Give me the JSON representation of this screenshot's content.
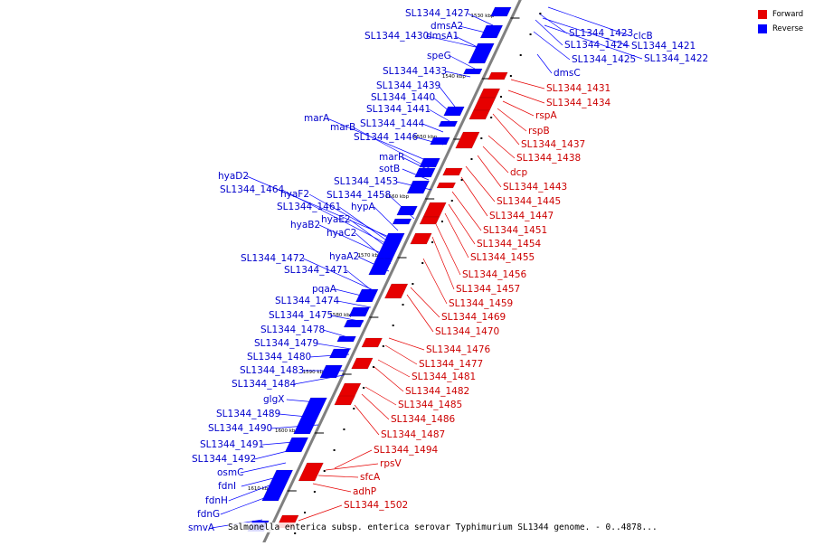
{
  "colors": {
    "forward": "#e60000",
    "reverse": "#0000ff",
    "forward_label": "#cc0000",
    "reverse_label": "#0000cc",
    "backbone": "#808080"
  },
  "legend": [
    {
      "label": "Forward",
      "color": "#e60000"
    },
    {
      "label": "Reverse",
      "color": "#0000ff"
    }
  ],
  "caption": "Salmonella enterica subsp. enterica serovar Typhimurium SL1344 genome. - 0..4878...",
  "ticks": [
    "1530 kbp",
    "1540 kbp",
    "1550 kbp",
    "1560 kbp",
    "1570 kbp",
    "1580 kbp",
    "1590 kbp",
    "1600 kbp",
    "1610 kbp"
  ],
  "reverse_genes": [
    "SL1344_1427",
    "dmsA2",
    "SL1344_1430",
    "dmsA1",
    "speG",
    "SL1344_1433",
    "SL1344_1439",
    "SL1344_1440",
    "SL1344_1441",
    "marA",
    "SL1344_1444",
    "marB",
    "SL1344_1446",
    "marR",
    "sotB",
    "SL1344_1453",
    "hyaD2",
    "SL1344_1464",
    "hyaF2",
    "SL1344_1458",
    "SL1344_1461",
    "hypA",
    "hyaE2",
    "hyaB2",
    "hyaC2",
    "hyaA2",
    "SL1344_1472",
    "SL1344_1471",
    "pqaA",
    "SL1344_1474",
    "SL1344_1475",
    "SL1344_1478",
    "SL1344_1479",
    "SL1344_1480",
    "SL1344_1483",
    "SL1344_1484",
    "glgX",
    "SL1344_1489",
    "SL1344_1490",
    "SL1344_1491",
    "SL1344_1492",
    "osmC",
    "fdnI",
    "fdnH",
    "fdnG",
    "smvA",
    "SL1344_1423",
    "clcB",
    "SL1344_1424",
    "SL1344_1421",
    "SL1344_1425",
    "SL1344_1422",
    "dmsC"
  ],
  "forward_genes": [
    "SL1344_1431",
    "SL1344_1434",
    "rspA",
    "rspB",
    "SL1344_1437",
    "SL1344_1438",
    "dcp",
    "SL1344_1443",
    "SL1344_1445",
    "SL1344_1447",
    "SL1344_1451",
    "SL1344_1454",
    "SL1344_1455",
    "SL1344_1456",
    "SL1344_1457",
    "SL1344_1459",
    "SL1344_1469",
    "SL1344_1470",
    "SL1344_1476",
    "SL1344_1477",
    "SL1344_1481",
    "SL1344_1482",
    "SL1344_1485",
    "SL1344_1486",
    "SL1344_1487",
    "SL1344_1494",
    "rpsV",
    "sfcA",
    "adhP",
    "SL1344_1502"
  ]
}
